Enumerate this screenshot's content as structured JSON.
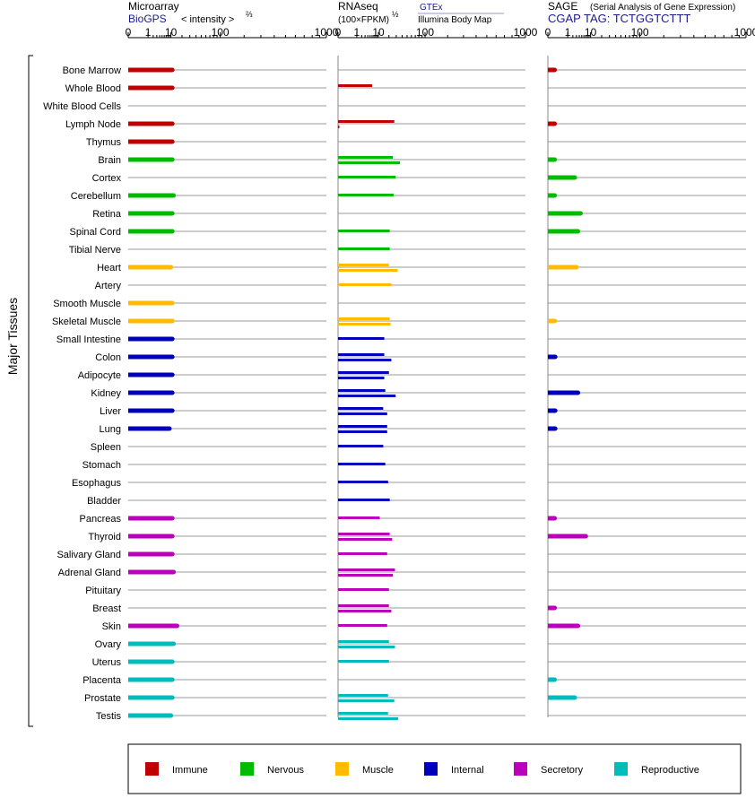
{
  "chart_data": {
    "type": "bar",
    "y_axis_label": "Major Tissues",
    "tissues": [
      "Bone Marrow",
      "Whole Blood",
      "White Blood Cells",
      "Lymph Node",
      "Thymus",
      "Brain",
      "Cortex",
      "Cerebellum",
      "Retina",
      "Spinal Cord",
      "Tibial Nerve",
      "Heart",
      "Artery",
      "Smooth Muscle",
      "Skeletal Muscle",
      "Small Intestine",
      "Colon",
      "Adipocyte",
      "Kidney",
      "Liver",
      "Lung",
      "Spleen",
      "Stomach",
      "Esophagus",
      "Bladder",
      "Pancreas",
      "Thyroid",
      "Salivary Gland",
      "Adrenal Gland",
      "Pituitary",
      "Breast",
      "Skin",
      "Ovary",
      "Uterus",
      "Placenta",
      "Prostate",
      "Testis"
    ],
    "categories": [
      "immune",
      "immune",
      "immune",
      "immune",
      "immune",
      "nervous",
      "nervous",
      "nervous",
      "nervous",
      "nervous",
      "nervous",
      "muscle",
      "muscle",
      "muscle",
      "muscle",
      "internal",
      "internal",
      "internal",
      "internal",
      "internal",
      "internal",
      "internal",
      "internal",
      "internal",
      "internal",
      "secretory",
      "secretory",
      "secretory",
      "secretory",
      "secretory",
      "secretory",
      "secretory",
      "reproductive",
      "reproductive",
      "reproductive",
      "reproductive",
      "reproductive"
    ],
    "colors": {
      "immune": "#c00000",
      "nervous": "#00bb00",
      "muscle": "#ffbb00",
      "internal": "#0000bb",
      "secretory": "#bb00bb",
      "reproductive": "#00bbbb"
    },
    "panels": [
      {
        "title": "Microarray",
        "source": "BioGPS",
        "scale_label_text": "< intensity >",
        "scale_label_exp": "⅔",
        "tick_labels": [
          "0",
          "1",
          "10",
          "100",
          "1000"
        ],
        "tick_values": [
          0,
          1,
          10,
          100,
          1000
        ],
        "values": [
          [
            11
          ],
          [
            11
          ],
          [],
          [
            11
          ],
          [
            11
          ],
          [
            11
          ],
          [],
          [
            12
          ],
          [
            11
          ],
          [
            11
          ],
          [],
          [
            10
          ],
          [],
          [
            11
          ],
          [
            11
          ],
          [
            11
          ],
          [
            11
          ],
          [
            11
          ],
          [
            11
          ],
          [
            11
          ],
          [
            9
          ],
          [],
          [],
          [],
          [],
          [
            11
          ],
          [
            11
          ],
          [
            11
          ],
          [
            12
          ],
          [],
          [],
          [
            15
          ],
          [
            12
          ],
          [
            11
          ],
          [
            11
          ],
          [
            11
          ],
          [
            10
          ]
        ]
      },
      {
        "title": "RNAseq",
        "scale_label_text": "(100×FPKM)",
        "scale_label_exp": "½",
        "source_note": "GTEx",
        "source_sub": "Illumina Body Map",
        "tick_labels": [
          "0",
          "1",
          "10",
          "100",
          "1000"
        ],
        "tick_values": [
          0,
          1,
          10,
          100,
          1000
        ],
        "values": [
          [],
          [
            6
          ],
          [],
          [
            27,
            0
          ],
          [],
          [
            25,
            36
          ],
          [
            29
          ],
          [
            26
          ],
          [],
          [
            21
          ],
          [
            21
          ],
          [
            20,
            32
          ],
          [
            23
          ],
          [],
          [
            21,
            22
          ],
          [
            15
          ],
          [
            15,
            23
          ],
          [
            20,
            15
          ],
          [
            16,
            29
          ],
          [
            14,
            18
          ],
          [
            18,
            18
          ],
          [
            14
          ],
          [
            16
          ],
          [
            19
          ],
          [
            21
          ],
          [
            11
          ],
          [
            21,
            24
          ],
          [
            18
          ],
          [
            28,
            25
          ],
          [
            20
          ],
          [
            20,
            23
          ],
          [
            18
          ],
          [
            20,
            28
          ],
          [
            20
          ],
          [],
          [
            19,
            27
          ],
          [
            19,
            33
          ]
        ]
      },
      {
        "title": "SAGE",
        "subtitle": "(Serial Analysis of Gene Expression)",
        "source": "CGAP TAG: TCTGGTCTTT",
        "tick_labels": [
          "0",
          "1",
          "10",
          "100",
          "1000"
        ],
        "tick_values": [
          0,
          1,
          10,
          100,
          1000
        ],
        "values": [
          [
            0.04
          ],
          [],
          [],
          [
            0.04
          ],
          [],
          [
            0.04
          ],
          [
            2.5
          ],
          [
            0.04
          ],
          [
            4.5
          ],
          [
            3.5
          ],
          [],
          [
            3
          ],
          [],
          [],
          [
            0.04
          ],
          [],
          [
            0.05
          ],
          [],
          [
            3.5
          ],
          [
            0.05
          ],
          [
            0.05
          ],
          [],
          [],
          [],
          [],
          [
            0.04
          ],
          [
            7
          ],
          [],
          [],
          [],
          [
            0.04
          ],
          [
            3.5
          ],
          [],
          [],
          [
            0.04
          ],
          [
            2.5
          ],
          []
        ]
      }
    ],
    "legend": [
      {
        "key": "immune",
        "label": "Immune"
      },
      {
        "key": "nervous",
        "label": "Nervous"
      },
      {
        "key": "muscle",
        "label": "Muscle"
      },
      {
        "key": "internal",
        "label": "Internal"
      },
      {
        "key": "secretory",
        "label": "Secretory"
      },
      {
        "key": "reproductive",
        "label": "Reproductive"
      }
    ]
  }
}
